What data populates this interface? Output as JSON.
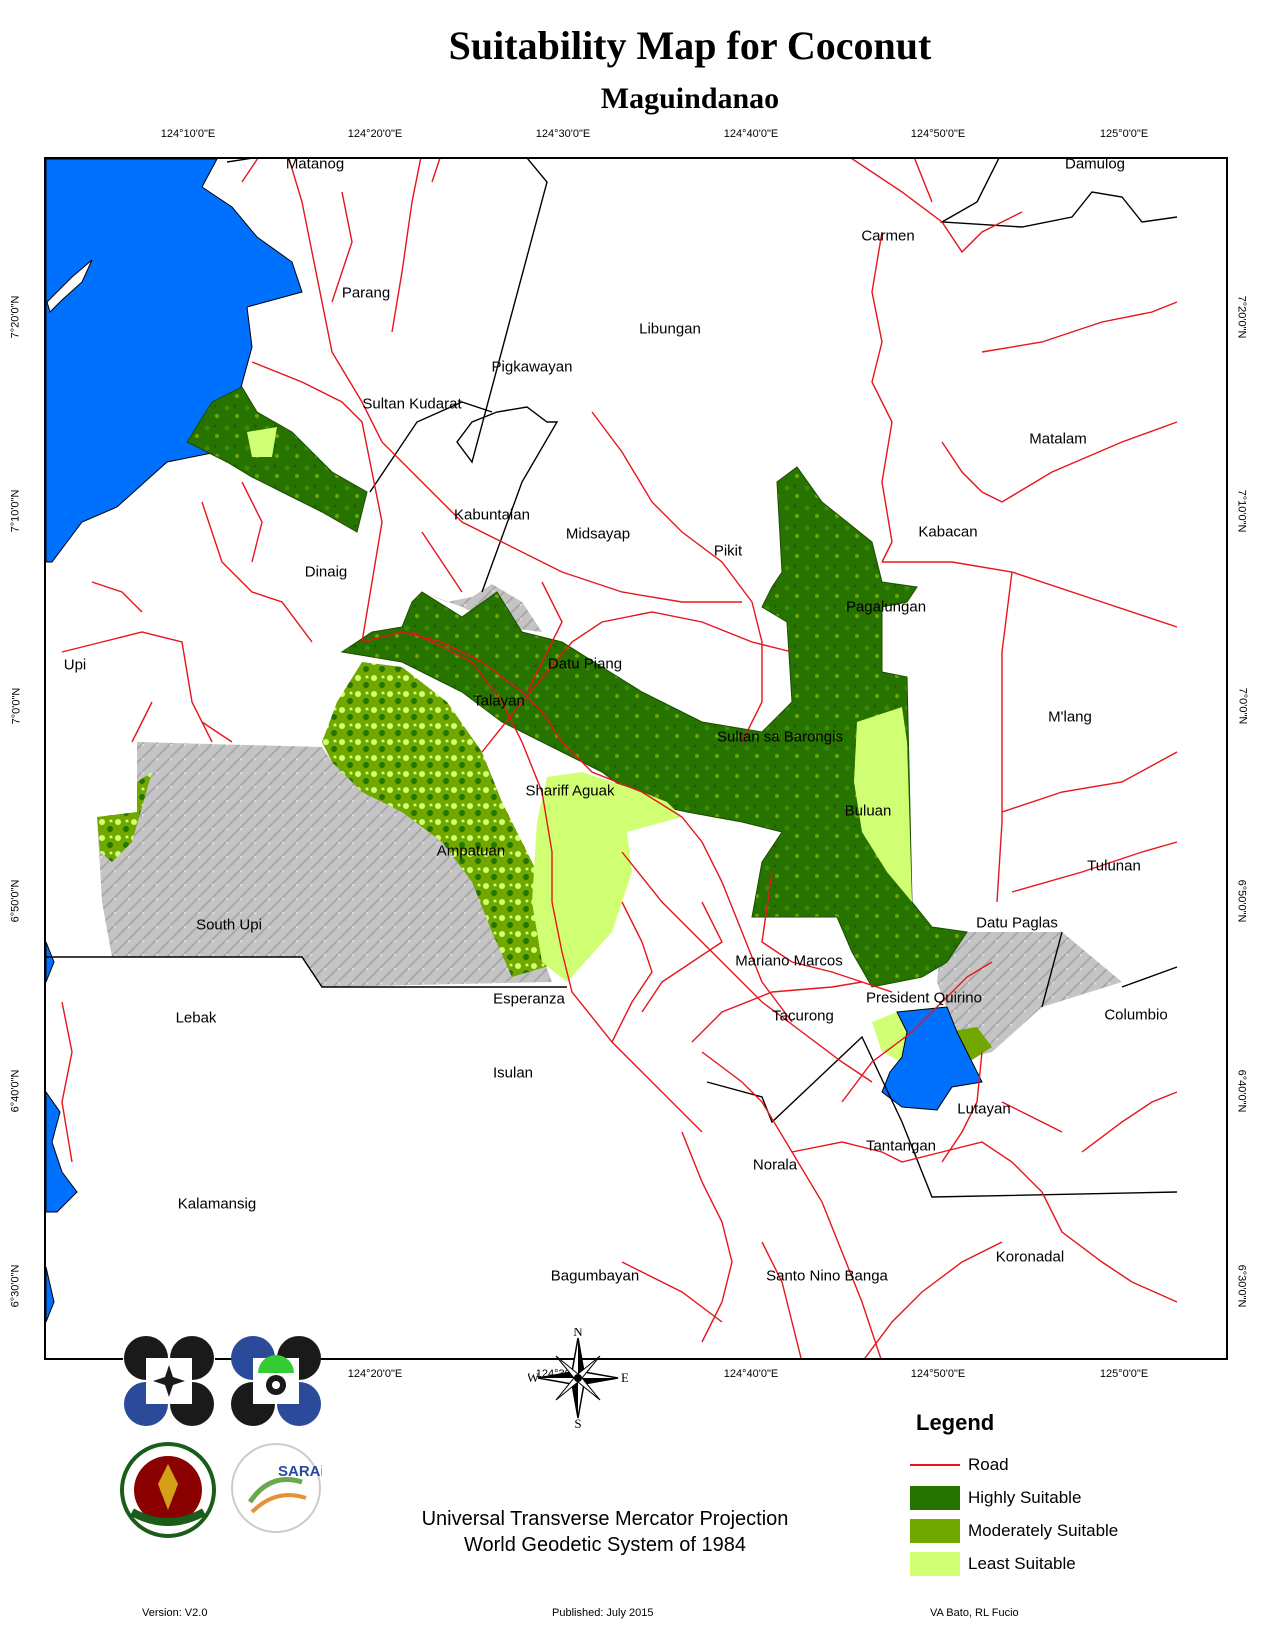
{
  "title": "Suitability Map for Coconut",
  "subtitle": "Maguindanao",
  "graticule": {
    "longitudes": [
      "124°10'0\"E",
      "124°20'0\"E",
      "124°30'0\"E",
      "124°40'0\"E",
      "124°50'0\"E",
      "125°0'0\"E"
    ],
    "latitudes": [
      "7°20'0\"N",
      "7°10'0\"N",
      "7°0'0\"N",
      "6°50'0\"N",
      "6°40'0\"N",
      "6°30'0\"N"
    ]
  },
  "places": {
    "matanog": "Matanog",
    "damulog": "Damulog",
    "carmen": "Carmen",
    "parang": "Parang",
    "libungan": "Libungan",
    "pigkawayan": "Pigkawayan",
    "sultan_kudarat": "Sultan Kudarat",
    "matalam": "Matalam",
    "kabuntalan": "Kabuntalan",
    "midsayap": "Midsayap",
    "pikit": "Pikit",
    "kabacan": "Kabacan",
    "dinaig": "Dinaig",
    "pagalungan": "Pagalungan",
    "upi": "Upi",
    "datu_piang": "Datu Piang",
    "talayan": "Talayan",
    "mlang": "M'lang",
    "sultan_sa_barongis": "Sultan sa Barongis",
    "shariff_aguak": "Shariff Aguak",
    "buluan": "Buluan",
    "ampatuan": "Ampatuan",
    "tulunan": "Tulunan",
    "south_upi": "South Upi",
    "datu_paglas": "Datu Paglas",
    "mariano_marcos": "Mariano Marcos",
    "esperanza": "Esperanza",
    "president_quirino": "President Quirino",
    "lebak": "Lebak",
    "tacurong": "Tacurong",
    "columbio": "Columbio",
    "isulan": "Isulan",
    "lutayan": "Lutayan",
    "tantangan": "Tantangan",
    "norala": "Norala",
    "kalamansig": "Kalamansig",
    "koronadal": "Koronadal",
    "bagumbayan": "Bagumbayan",
    "santo_nino_banga": "Santo Nino Banga"
  },
  "compass": {
    "n": "N",
    "s": "S",
    "e": "E",
    "w": "W"
  },
  "legend": {
    "title": "Legend",
    "items": [
      {
        "label": "Road",
        "color": "#e8141c",
        "kind": "line"
      },
      {
        "label": "Highly Suitable",
        "color": "#267300",
        "kind": "fill"
      },
      {
        "label": "Moderately Suitable",
        "color": "#70a800",
        "kind": "fill"
      },
      {
        "label": "Least Suitable",
        "color": "#d1ff73",
        "kind": "fill"
      }
    ]
  },
  "projection": {
    "line1": "Universal Transverse Mercator Projection",
    "line2": "World Geodetic System of 1984"
  },
  "footer": {
    "version": "Version: V2.0",
    "published": "Published: July 2015",
    "authors": "VA Bato, RL Fucio"
  },
  "logos": {
    "sarai_text": "SARAi",
    "up_seal_text": "UNIVERSITY OF THE PHILIPPINES",
    "up_seal_year": "1908",
    "up_seal_bottom": "LOS BAÑOS"
  },
  "colors": {
    "water": "#0070ff",
    "hillshade": "#c0c0c0",
    "boundary": "#000000"
  }
}
